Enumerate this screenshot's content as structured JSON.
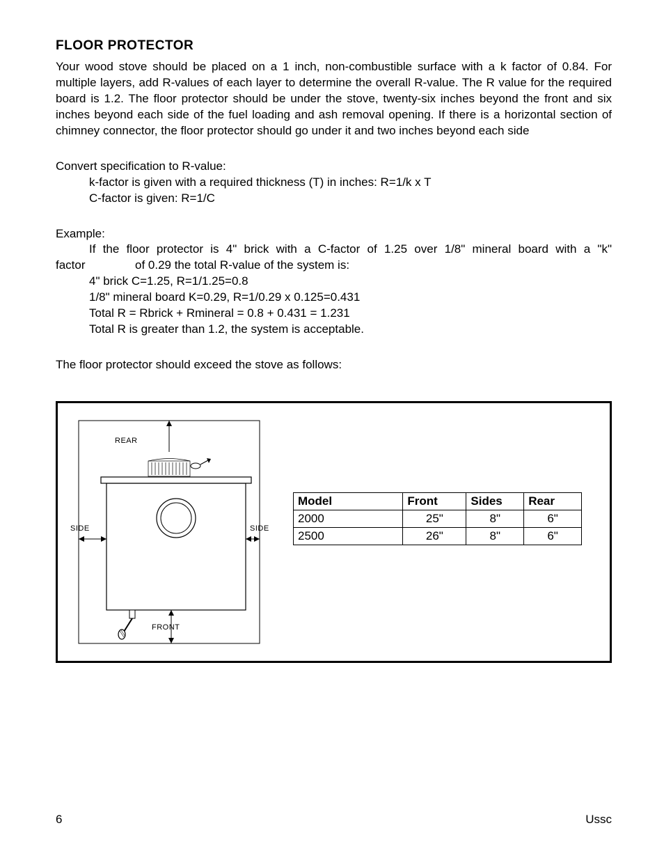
{
  "heading": "FLOOR PROTECTOR",
  "para1": "Your wood stove should be placed on a 1 inch, non-combustible surface with a k factor of 0.84. For multiple layers, add R-values of each layer to determine the overall R-value. The R value for the required board is 1.2. The floor protector should be under the stove, twenty-six inches beyond the front and six inches beyond each side of the fuel loading and ash removal opening. If there is a horizontal section of chimney connector, the floor protector should go under it and two inches beyond each side",
  "convert_label": "Convert specification to R-value:",
  "convert_line1": "k-factor is given with a required thickness (T) in inches: R=1/k x T",
  "convert_line2": "C-factor is given: R=1/C",
  "example_label": "Example:",
  "example_line1": "If the floor protector is 4\" brick with a C-factor of 1.25 over 1/8\" mineral board with a \"k\"",
  "example_line1b_left": "factor",
  "example_line1b_right": "of 0.29 the total R-value of the system is:",
  "example_line2": "4\" brick C=1.25, R=1/1.25=0.8",
  "example_line3": "1/8\" mineral board K=0.29, R=1/0.29 x 0.125=0.431",
  "example_line4": "Total R = Rbrick + Rmineral = 0.8 + 0.431 = 1.231",
  "example_line5": "Total R is greater than 1.2, the system is acceptable.",
  "para4": "The floor protector should exceed the stove as follows:",
  "diagram": {
    "labels": {
      "rear": "REAR",
      "side": "SIDE",
      "front": "FRONT"
    },
    "stroke": "#000000",
    "fill": "#ffffff"
  },
  "table": {
    "headers": [
      "Model",
      "Front",
      "Sides",
      "Rear"
    ],
    "rows": [
      [
        "2000",
        "25\"",
        "8\"",
        "6\""
      ],
      [
        "2500",
        "26\"",
        "8\"",
        "6\""
      ]
    ],
    "col_widths": [
      "38%",
      "22%",
      "20%",
      "20%"
    ]
  },
  "footer": {
    "page": "6",
    "brand": "Ussc"
  },
  "colors": {
    "text": "#000000",
    "bg": "#ffffff",
    "border": "#000000"
  }
}
